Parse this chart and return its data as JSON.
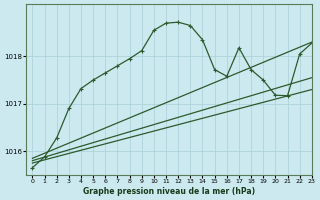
{
  "title": "Graphe pression niveau de la mer (hPa)",
  "bg_color": "#cce9f0",
  "grid_color": "#aacfd8",
  "line_color": "#2d5a2d",
  "xlim": [
    -0.5,
    23
  ],
  "ylim": [
    1015.5,
    1019.1
  ],
  "yticks": [
    1016,
    1017,
    1018
  ],
  "xticks": [
    0,
    1,
    2,
    3,
    4,
    5,
    6,
    7,
    8,
    9,
    10,
    11,
    12,
    13,
    14,
    15,
    16,
    17,
    18,
    19,
    20,
    21,
    22,
    23
  ],
  "series": [
    {
      "x": [
        0,
        23
      ],
      "y": [
        1015.75,
        1017.3
      ],
      "marker": null,
      "linestyle": "-",
      "linewidth": 0.9
    },
    {
      "x": [
        0,
        23
      ],
      "y": [
        1015.8,
        1017.55
      ],
      "marker": null,
      "linestyle": "-",
      "linewidth": 0.9
    },
    {
      "x": [
        0,
        23
      ],
      "y": [
        1015.85,
        1018.3
      ],
      "marker": null,
      "linestyle": "-",
      "linewidth": 0.9
    },
    {
      "x": [
        0,
        1,
        2,
        3,
        4,
        5,
        6,
        7,
        8,
        9,
        10,
        11,
        12,
        13,
        14,
        15,
        16,
        17,
        18,
        19,
        20,
        21,
        22,
        23
      ],
      "y": [
        1015.65,
        1015.88,
        1016.28,
        1016.9,
        1017.32,
        1017.5,
        1017.65,
        1017.8,
        1017.95,
        1018.12,
        1018.55,
        1018.7,
        1018.72,
        1018.65,
        1018.35,
        1017.72,
        1017.58,
        1018.18,
        1017.72,
        1017.5,
        1017.18,
        1017.17,
        1018.05,
        1018.28
      ],
      "marker": "+",
      "linestyle": "-",
      "linewidth": 0.9
    }
  ]
}
